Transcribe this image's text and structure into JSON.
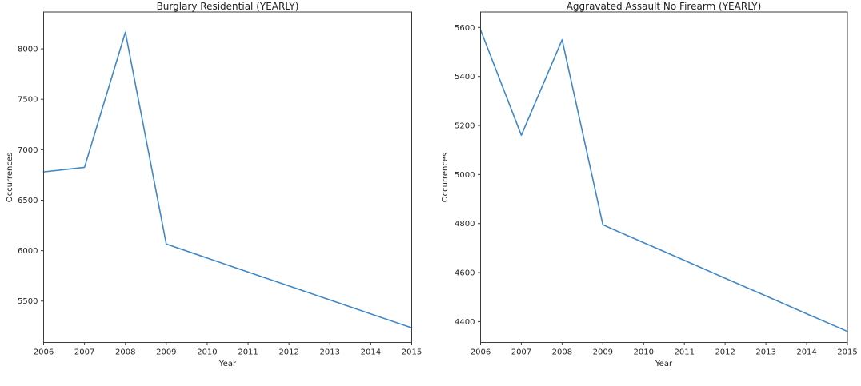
{
  "figure": {
    "background": "#ffffff",
    "text_color": "#262626",
    "spine_color": "#3c3c3c"
  },
  "chart_data": [
    {
      "type": "line",
      "title": "Burglary Residential (YEARLY)",
      "xlabel": "Year",
      "ylabel": "Occurrences",
      "line_color": "#3f87c6",
      "grid": false,
      "legend": false,
      "x": [
        2006,
        2007,
        2008,
        2009,
        2010,
        2011,
        2012,
        2013,
        2014,
        2015
      ],
      "values": [
        6780,
        6825,
        8165,
        6065,
        5927,
        5788,
        5650,
        5512,
        5373,
        5235
      ],
      "xlim": [
        2006,
        2015
      ],
      "ylim": [
        5090,
        8365
      ],
      "xticks": [
        2006,
        2007,
        2008,
        2009,
        2010,
        2011,
        2012,
        2013,
        2014,
        2015
      ],
      "yticks": [
        5500,
        6000,
        6500,
        7000,
        7500,
        8000
      ]
    },
    {
      "type": "line",
      "title": "Aggravated Assault No Firearm (YEARLY)",
      "xlabel": "Year",
      "ylabel": "Occurrences",
      "line_color": "#3f87c6",
      "grid": false,
      "legend": false,
      "x": [
        2006,
        2007,
        2008,
        2009,
        2010,
        2011,
        2012,
        2013,
        2014,
        2015
      ],
      "values": [
        5590,
        5160,
        5550,
        4795,
        4722,
        4650,
        4577,
        4505,
        4432,
        4360
      ],
      "xlim": [
        2006,
        2015
      ],
      "ylim": [
        4315,
        5663
      ],
      "xticks": [
        2006,
        2007,
        2008,
        2009,
        2010,
        2011,
        2012,
        2013,
        2014,
        2015
      ],
      "yticks": [
        4400,
        4600,
        4800,
        5000,
        5200,
        5400,
        5600
      ]
    }
  ]
}
